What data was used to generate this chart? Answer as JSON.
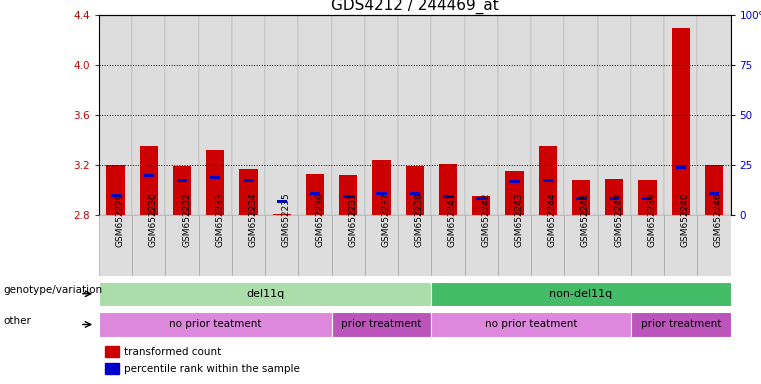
{
  "title": "GDS4212 / 244469_at",
  "samples": [
    "GSM652229",
    "GSM652230",
    "GSM652232",
    "GSM652233",
    "GSM652234",
    "GSM652235",
    "GSM652236",
    "GSM652231",
    "GSM652237",
    "GSM652238",
    "GSM652241",
    "GSM652242",
    "GSM652243",
    "GSM652244",
    "GSM652245",
    "GSM652247",
    "GSM652239",
    "GSM652240",
    "GSM652246"
  ],
  "red_values": [
    3.2,
    3.35,
    3.19,
    3.32,
    3.17,
    2.81,
    3.13,
    3.12,
    3.24,
    3.19,
    3.21,
    2.95,
    3.15,
    3.35,
    3.08,
    3.09,
    3.08,
    4.3,
    3.2
  ],
  "blue_values": [
    2.96,
    3.12,
    3.08,
    3.1,
    3.08,
    2.91,
    2.97,
    2.95,
    2.97,
    2.97,
    2.95,
    2.93,
    3.07,
    3.08,
    2.93,
    2.93,
    2.93,
    3.18,
    2.97
  ],
  "base": 2.8,
  "ylim_left": [
    2.8,
    4.4
  ],
  "ylim_right": [
    0,
    100
  ],
  "yticks_left": [
    2.8,
    3.2,
    3.6,
    4.0,
    4.4
  ],
  "yticks_right": [
    0,
    25,
    50,
    75,
    100
  ],
  "bar_width": 0.55,
  "red_color": "#cc0000",
  "blue_color": "#0000cc",
  "genotype_groups": [
    {
      "label": "del11q",
      "start": 0,
      "end": 10,
      "color": "#aaddaa"
    },
    {
      "label": "non-del11q",
      "start": 10,
      "end": 19,
      "color": "#44bb66"
    }
  ],
  "treatment_groups": [
    {
      "label": "no prior teatment",
      "start": 0,
      "end": 7,
      "color": "#dd88dd"
    },
    {
      "label": "prior treatment",
      "start": 7,
      "end": 10,
      "color": "#bb55bb"
    },
    {
      "label": "no prior teatment",
      "start": 10,
      "end": 16,
      "color": "#dd88dd"
    },
    {
      "label": "prior treatment",
      "start": 16,
      "end": 19,
      "color": "#bb55bb"
    }
  ],
  "legend_items": [
    {
      "label": "transformed count",
      "color": "#cc0000"
    },
    {
      "label": "percentile rank within the sample",
      "color": "#0000cc"
    }
  ],
  "left_label_color": "#cc0000",
  "right_label_color": "#0000cc",
  "title_fontsize": 11,
  "tick_fontsize": 7.5,
  "xtick_fontsize": 6.5,
  "bar_bg_color": "#dddddd",
  "grid_yticks": [
    3.2,
    3.6,
    4.0
  ],
  "n_samples": 19
}
